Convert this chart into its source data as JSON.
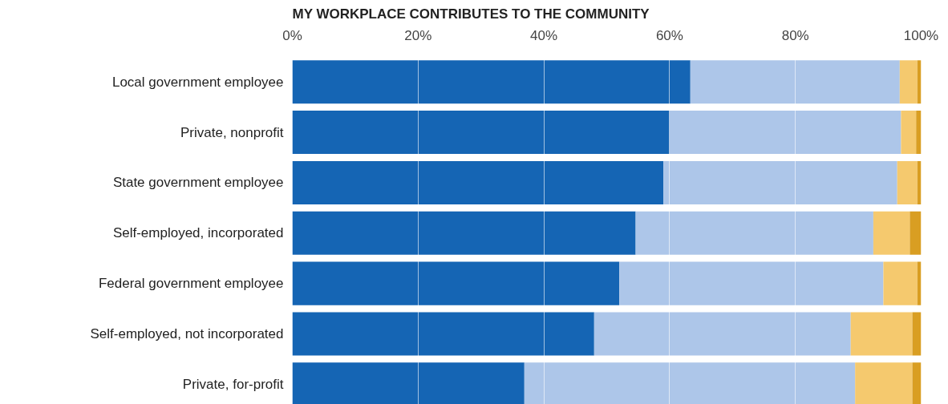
{
  "chart_data": {
    "type": "bar",
    "orientation": "horizontal",
    "stacked": true,
    "title": "MY WORKPLACE CONTRIBUTES TO THE COMMUNITY",
    "categories": [
      "Local government employee",
      "Private, nonprofit",
      "State government employee",
      "Self-employed, incorporated",
      "Federal government employee",
      "Self-employed, not incorporated",
      "Private, for-profit"
    ],
    "series": [
      {
        "color": "#1565b4",
        "values": [
          63.3,
          60.0,
          59.0,
          54.6,
          52.0,
          48.0,
          36.9
        ]
      },
      {
        "color": "#adc6e9",
        "values": [
          33.3,
          36.8,
          37.2,
          37.8,
          42.0,
          40.8,
          52.6
        ]
      },
      {
        "color": "#f5c96e",
        "values": [
          2.8,
          2.4,
          3.2,
          5.8,
          5.4,
          9.8,
          9.1
        ]
      },
      {
        "color": "#d99e22",
        "values": [
          0.6,
          0.8,
          0.6,
          1.8,
          0.6,
          1.4,
          1.4
        ]
      }
    ],
    "xlim": [
      0,
      100
    ],
    "xticks": [
      {
        "value": 0,
        "label": "0%"
      },
      {
        "value": 20,
        "label": "20%"
      },
      {
        "value": 40,
        "label": "40%"
      },
      {
        "value": 60,
        "label": "60%"
      },
      {
        "value": 80,
        "label": "80%"
      },
      {
        "value": 100,
        "label": "100%"
      }
    ],
    "grid": "x"
  }
}
